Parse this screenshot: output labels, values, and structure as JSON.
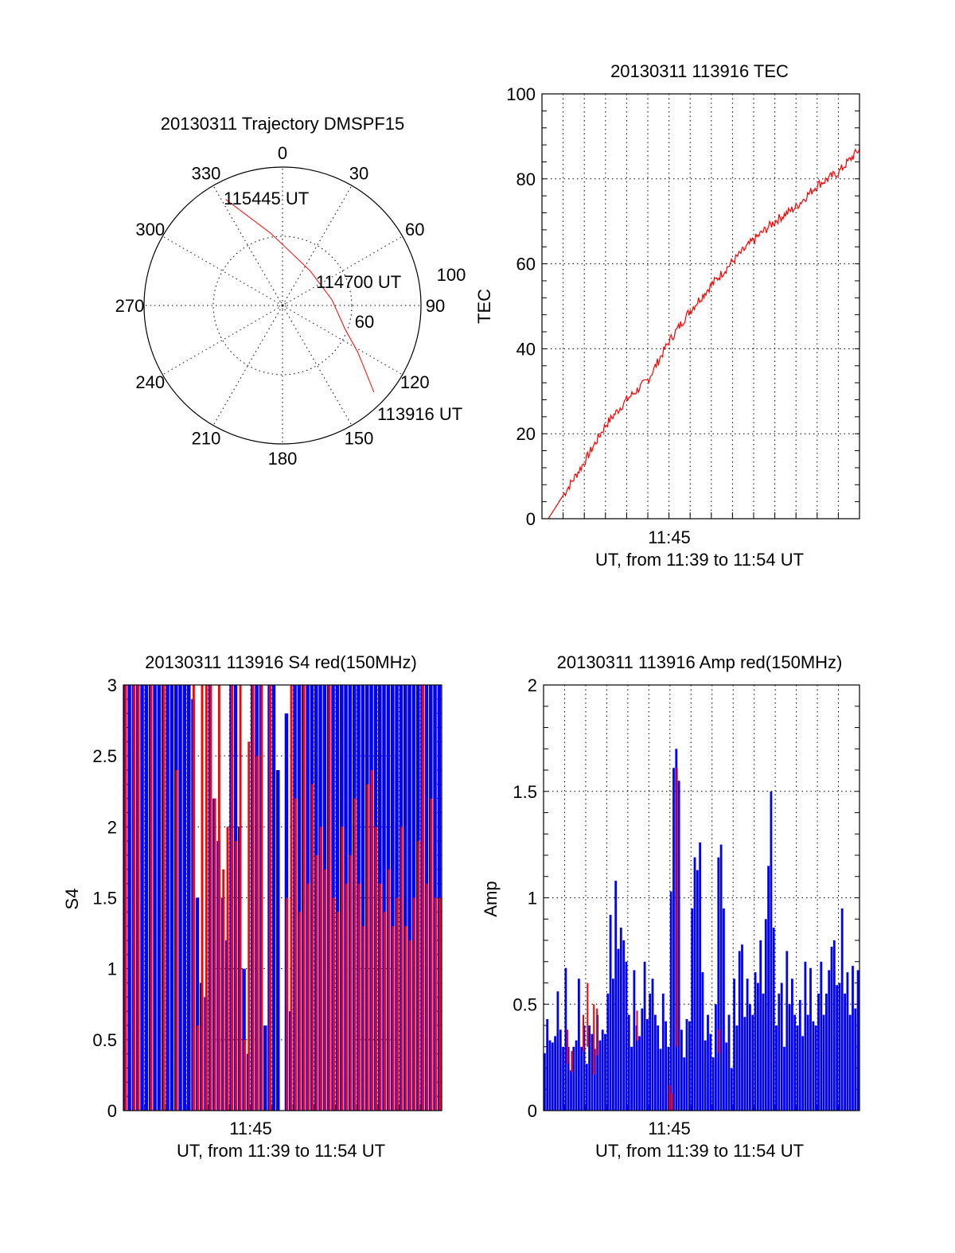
{
  "colors": {
    "red": "#ff0000",
    "blue": "#0000ff",
    "axis": "#000000"
  },
  "chart_data": [
    {
      "type": "polar",
      "title": "20130311 Trajectory DMSPF15",
      "angle_labels": [
        "0",
        "30",
        "60",
        "90",
        "120",
        "150",
        "180",
        "210",
        "240",
        "270",
        "300",
        "330"
      ],
      "radius_labels": [
        "60",
        "100"
      ],
      "grid": true,
      "trajectory": {
        "color": "#ff0000",
        "points_az_r": [
          [
            133.5,
            91
          ],
          [
            121.8,
            64
          ],
          [
            110.4,
            48
          ],
          [
            83.6,
            36
          ],
          [
            38.5,
            32
          ],
          [
            1.5,
            43
          ],
          [
            350.6,
            53
          ],
          [
            331.8,
            87
          ]
        ]
      },
      "annotations": [
        "113916 UT",
        "114700 UT",
        "115445 UT"
      ]
    },
    {
      "type": "line",
      "title": "20130311 113916 TEC",
      "xlabel": "UT, from 11:39 to 11:54 UT",
      "ylabel": "TEC",
      "xtick_labels": [
        "11:45"
      ],
      "ytick_labels": [
        "0",
        "20",
        "40",
        "60",
        "80",
        "100"
      ],
      "xlim_minutes": [
        0,
        15
      ],
      "ylim": [
        0,
        100
      ],
      "grid": true,
      "series": [
        {
          "name": "TEC",
          "color": "#ff0000",
          "x_minutes": [
            0.3,
            1,
            2,
            3,
            4,
            5,
            6,
            7,
            8,
            9,
            10,
            11,
            12,
            13,
            14,
            15
          ],
          "values": [
            0,
            5.5,
            13.3,
            22,
            28,
            32.6,
            41.7,
            49,
            55,
            60.5,
            65.6,
            70,
            73.4,
            78.5,
            81.5,
            87
          ]
        }
      ]
    },
    {
      "type": "bar",
      "title": "20130311 113916 S4 red(150MHz)",
      "xlabel": "UT, from 11:39 to 11:54 UT",
      "ylabel": "S4",
      "xtick_labels": [
        "11:45"
      ],
      "ytick_labels": [
        "0",
        "0.5",
        "1",
        "1.5",
        "2",
        "2.5",
        "3"
      ],
      "xlim_minutes": [
        0,
        15
      ],
      "ylim": [
        0,
        3
      ],
      "samples_per_minute": 5,
      "grid": true,
      "series": [
        {
          "name": "blue",
          "color": "#0000ff",
          "values": [
            3,
            3,
            3,
            3,
            3,
            3,
            3,
            3,
            3,
            3,
            3,
            3,
            3,
            3,
            3,
            3,
            2.9,
            1.5,
            0.9,
            0.8,
            3,
            2.2,
            1.9,
            1.5,
            1.2,
            3,
            3,
            2.0,
            1.0,
            0.4,
            3,
            3,
            3,
            0.6,
            3,
            3,
            2.4,
            0,
            2.8,
            0.7,
            3,
            3,
            3,
            3,
            3,
            3,
            3,
            3,
            3,
            3,
            3,
            3,
            3,
            3,
            3,
            3,
            3,
            3,
            3,
            3,
            3,
            3,
            3,
            3,
            3,
            3,
            3,
            3,
            3,
            3,
            3,
            3,
            3,
            3,
            3
          ]
        },
        {
          "name": "red",
          "color": "#ff0000",
          "values": [
            3,
            0,
            3,
            3,
            0,
            0,
            3,
            0,
            0,
            3,
            0,
            0,
            2.4,
            0,
            0,
            0,
            3,
            0.6,
            3,
            3,
            3,
            2.2,
            3,
            1.7,
            2.0,
            3,
            1.9,
            3,
            0.5,
            2.6,
            3,
            2.5,
            3,
            0,
            3,
            0,
            0,
            0,
            1.5,
            3,
            2.2,
            1.4,
            3,
            1.6,
            2.3,
            1.8,
            2.0,
            1.7,
            3,
            1.5,
            1.4,
            2.0,
            1.6,
            1.8,
            2.2,
            1.6,
            1.3,
            2.3,
            2.4,
            2.0,
            1.6,
            1.4,
            1.7,
            1.3,
            1.5,
            2.0,
            1.3,
            1.2,
            1.5,
            1.9,
            3,
            1.6,
            2.2,
            1.5,
            1.5
          ]
        }
      ]
    },
    {
      "type": "bar",
      "title": "20130311 113916 Amp red(150MHz)",
      "xlabel": "UT, from 11:39 to 11:54 UT",
      "ylabel": "Amp",
      "xtick_labels": [
        "11:45"
      ],
      "ytick_labels": [
        "0",
        "0.5",
        "1",
        "1.5",
        "2"
      ],
      "xlim_minutes": [
        0,
        15
      ],
      "ylim": [
        0,
        2
      ],
      "samples_per_minute": 8,
      "grid": true,
      "series": [
        {
          "name": "blue",
          "color": "#0000ff",
          "values": [
            0.27,
            0.43,
            0.33,
            0.32,
            0.35,
            0.56,
            0.38,
            0.3,
            0.67,
            0.3,
            0.19,
            0.3,
            0.33,
            0.62,
            0.3,
            0.4,
            0.22,
            0.4,
            0.36,
            0.29,
            0.45,
            0.33,
            0.38,
            0.36,
            0.55,
            0.92,
            0.62,
            1.08,
            0.76,
            0.86,
            0.8,
            0.7,
            0.45,
            0.3,
            0.66,
            0.4,
            0.35,
            0.48,
            0.7,
            0.43,
            0.55,
            0.62,
            0.45,
            0.4,
            0.29,
            0.55,
            0.42,
            0.3,
            1.03,
            1.61,
            1.7,
            1.55,
            0.38,
            0.25,
            0.43,
            0.42,
            0.95,
            1.19,
            1.13,
            1.26,
            0.65,
            0.33,
            0.45,
            0.36,
            0.25,
            0.5,
            1.19,
            1.25,
            0.95,
            0.32,
            0.45,
            0.2,
            0.62,
            0.4,
            0.75,
            0.78,
            0.44,
            0.62,
            0.5,
            0.45,
            0.65,
            0.6,
            0.8,
            0.55,
            0.9,
            1.15,
            1.5,
            0.86,
            0.4,
            0.55,
            0.6,
            0.3,
            0.75,
            0.5,
            0.62,
            0.45,
            0.4,
            0.52,
            0.35,
            0.7,
            0.45,
            0.67,
            0.42,
            0.4,
            0.55,
            0.7,
            0.45,
            0.55,
            0.66,
            0.77,
            0.8,
            0.59,
            0.6,
            0.95,
            0.55,
            0.65,
            0.45,
            0.68,
            0.48,
            0.66
          ]
        },
        {
          "name": "red",
          "color": "#ff0000",
          "segments_minute_low_high": [
            [
              1.1,
              0.22,
              0.38
            ],
            [
              1.3,
              0.18,
              0.28
            ],
            [
              1.85,
              0.28,
              0.45
            ],
            [
              2.05,
              0.3,
              0.6
            ],
            [
              2.35,
              0.17,
              0.5
            ],
            [
              2.5,
              0.26,
              0.48
            ],
            [
              4.4,
              0.33,
              0.47
            ],
            [
              5.95,
              0,
              0.12
            ],
            [
              6.05,
              0,
              0.08
            ],
            [
              6.3,
              0.3,
              1.61
            ],
            [
              8.3,
              0.27,
              0.38
            ]
          ]
        }
      ]
    }
  ]
}
